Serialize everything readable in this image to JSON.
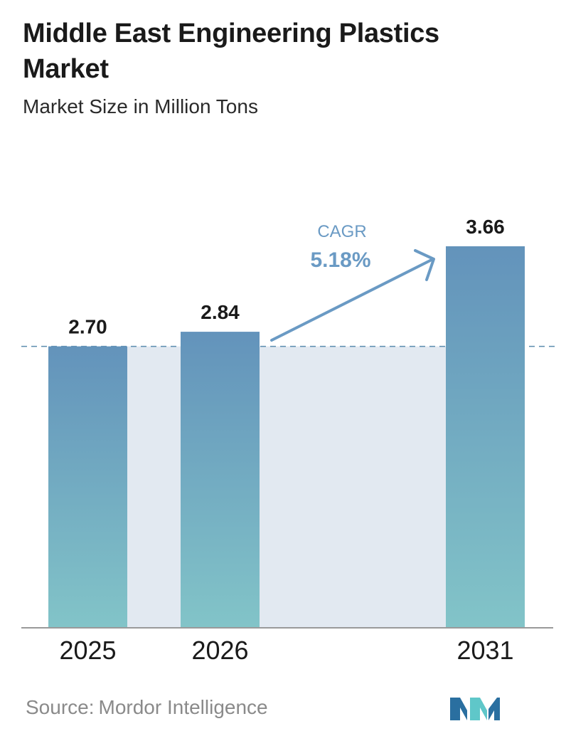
{
  "header": {
    "title": "Middle East Engineering Plastics Market",
    "subtitle": "Market Size in Million Tons"
  },
  "chart_data": {
    "type": "bar",
    "categories": [
      "2025",
      "2026",
      "2031"
    ],
    "values": [
      2.7,
      2.84,
      3.66
    ],
    "value_labels": [
      "2.70",
      "2.84",
      "3.66"
    ],
    "title": "Middle East Engineering Plastics Market",
    "subtitle": "Market Size in Million Tons",
    "ylim": [
      0,
      3.66
    ],
    "grid": false,
    "reference_line": {
      "value": 2.7,
      "style": "dashed"
    },
    "annotation": {
      "label": "CAGR",
      "value": "5.18%"
    },
    "colors": {
      "bar_top": "#6393bb",
      "bar_bottom": "#82c4c8",
      "band": "#e2e9f1",
      "reference_line": "#5b8cae",
      "arrow": "#6a9ac4",
      "cagr_text": "#6a9ac4",
      "axis": "#9a9a9a"
    }
  },
  "footer": {
    "source_label": "Source:",
    "source_name": "Mordor Intelligence",
    "logo_icon": "mordor-intelligence-logo-icon",
    "logo_colors": [
      "#2a6fa0",
      "#5fc7c9"
    ]
  }
}
